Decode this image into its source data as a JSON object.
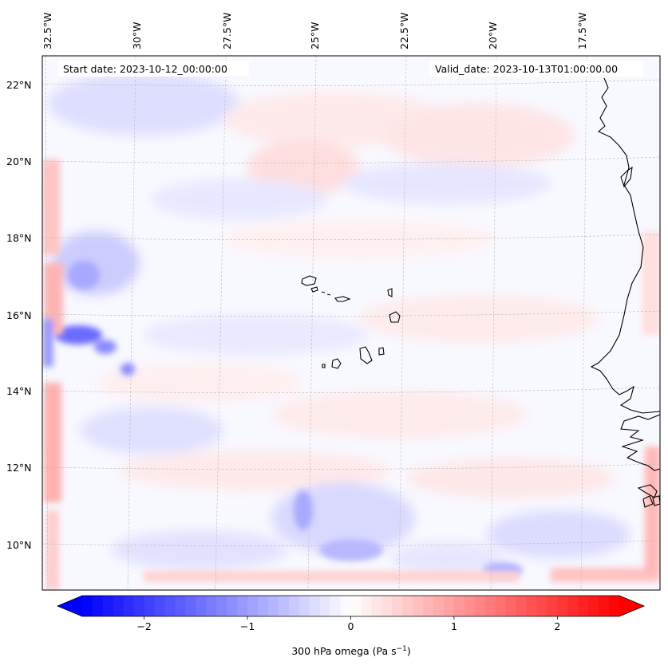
{
  "map": {
    "start_label": "Start date: 2023-10-12_00:00:00",
    "valid_label": "Valid_date: 2023-10-13T01:00:00.00",
    "lon_labels": [
      "32.5°W",
      "30°W",
      "27.5°W",
      "25°W",
      "22.5°W",
      "20°W",
      "17.5°W"
    ],
    "lat_labels": [
      "22°N",
      "20°N",
      "18°N",
      "16°N",
      "14°N",
      "12°N",
      "10°N"
    ],
    "field": "300 hPa omega",
    "field_range": [
      -2.6,
      2.6
    ],
    "colormap": "bwr",
    "gridlines": true
  },
  "colorbar": {
    "label": "300 hPa omega (Pa s",
    "label_sup": "−1",
    "label_close": ")",
    "ticks": [
      {
        "value": -2,
        "label": "−2"
      },
      {
        "value": -1,
        "label": "−1"
      },
      {
        "value": 0,
        "label": "0"
      },
      {
        "value": 1,
        "label": "1"
      },
      {
        "value": 2,
        "label": "2"
      }
    ],
    "min": -2.6,
    "max": 2.6,
    "colors": {
      "low": "#0000ff",
      "mid": "#ffffff",
      "high": "#ff0000"
    }
  }
}
